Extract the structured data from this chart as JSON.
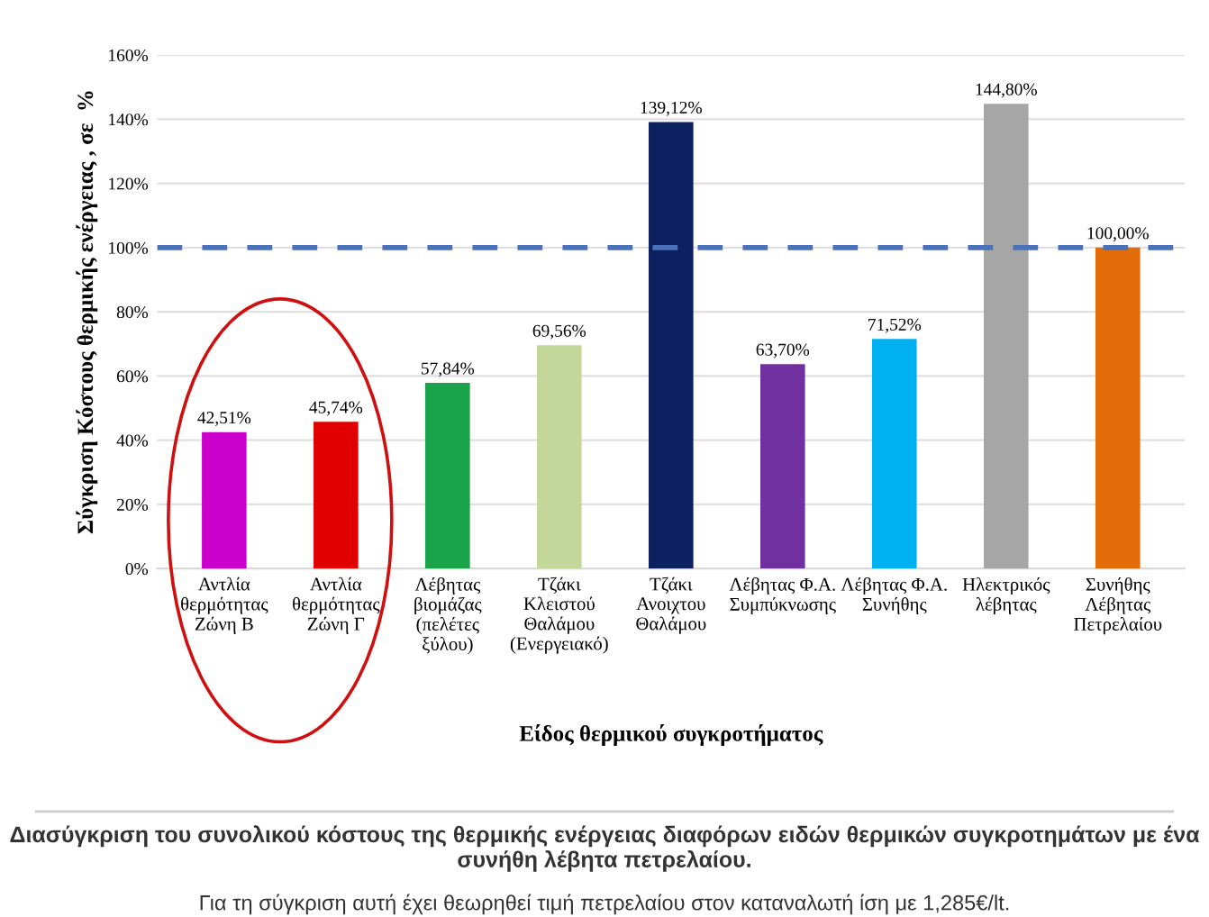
{
  "chart_data": {
    "type": "bar",
    "xlabel": "Είδος θερμικού συγκροτήματος",
    "ylabel": "Σύγκριση Κόστους θερμικής ενέργειας , σε  %",
    "categories": [
      "Αντλία\nθερμότητας\nΖώνη Β",
      "Αντλία\nθερμότητας\nΖώνη Γ",
      "Λέβητας\nβιομάζας\n(πελέτες\nξύλου)",
      "Τζάκι\nΚλειστού\nΘαλάμου\n(Ενεργειακό)",
      "Τζάκι\nΑνοιχτου\nΘαλάμου",
      "Λέβητας Φ.Α.\nΣυμπύκνωσης",
      "Λέβητας Φ.Α.\nΣυνήθης",
      "Ηλεκτρικός\nλέβητας",
      "Συνήθης\nΛέβητας\nΠετρελαίου"
    ],
    "values": [
      42.51,
      45.74,
      57.84,
      69.56,
      139.12,
      63.7,
      71.52,
      144.8,
      100.0
    ],
    "value_labels": [
      "42,51%",
      "45,74%",
      "57,84%",
      "69,56%",
      "139,12%",
      "63,70%",
      "71,52%",
      "144,80%",
      "100,00%"
    ],
    "colors": [
      "#cc00cc",
      "#e00000",
      "#1aa34a",
      "#c4d79b",
      "#0d2060",
      "#7030a0",
      "#00b0f0",
      "#a6a6a6",
      "#e36c09"
    ],
    "ylim": [
      0,
      160
    ],
    "yticks": [
      {
        "value": 0,
        "label": "0%"
      },
      {
        "value": 20,
        "label": "20%"
      },
      {
        "value": 40,
        "label": "40%"
      },
      {
        "value": 60,
        "label": "60%"
      },
      {
        "value": 80,
        "label": "80%"
      },
      {
        "value": 100,
        "label": "100%"
      },
      {
        "value": 120,
        "label": "120%"
      },
      {
        "value": 140,
        "label": "140%"
      },
      {
        "value": 160,
        "label": "160%"
      }
    ],
    "grid": "y",
    "ref_lines": [
      {
        "axis": "y",
        "value": 100,
        "color": "#4a72b8",
        "line_style": "dashed"
      }
    ],
    "annotations": [
      "Διασύγκριση του συνολικού κόστους της θερμικής ενέργειας διαφόρων ειδών θερμικών συγκροτημάτων με ένα συνήθη λέβητα πετρελαίου.",
      "Για τη σύγκριση αυτή έχει θεωρηθεί τιμή πετρελαίου στον καταναλωτή ίση με 1,285€/lt."
    ]
  }
}
